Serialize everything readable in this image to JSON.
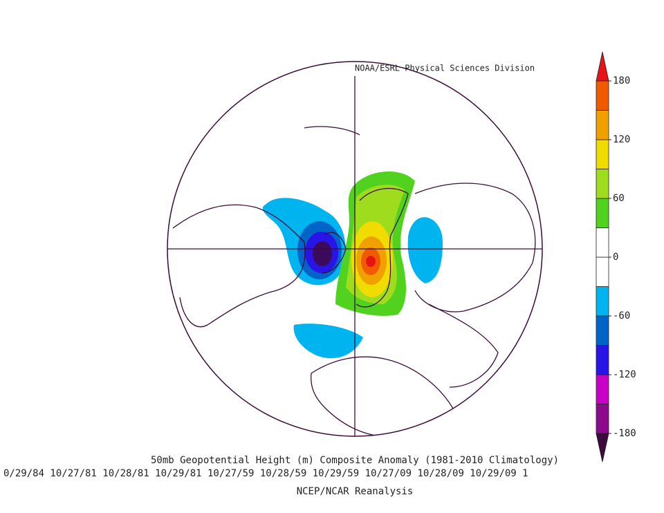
{
  "header": {
    "credit": "NOAA/ESRL Physical Sciences Division"
  },
  "map": {
    "title": "50mb Geopotential Height (m) Composite Anomaly (1981-2010 Climatology)",
    "dates": "0/29/84 10/27/81 10/28/81 10/29/81 10/27/59 10/28/59 10/29/59 10/27/09 10/28/09 10/29/09 1",
    "source": "NCEP/NCAR Reanalysis"
  },
  "colorbar": {
    "levels": [
      -180,
      -150,
      -120,
      -90,
      -60,
      -30,
      0,
      30,
      60,
      90,
      120,
      150,
      180
    ],
    "colors": [
      "#8c0a8c",
      "#c800c8",
      "#2814e6",
      "#0064c8",
      "#00b4f0",
      "#ffffff",
      "#ffffff",
      "#50d21e",
      "#a0dc1e",
      "#f0dc00",
      "#f0a000",
      "#f05a00"
    ],
    "low_color": "#3c0a3c",
    "high_color": "#e61414",
    "ticks": [
      180,
      120,
      60,
      0,
      -60,
      -120,
      -180
    ]
  }
}
